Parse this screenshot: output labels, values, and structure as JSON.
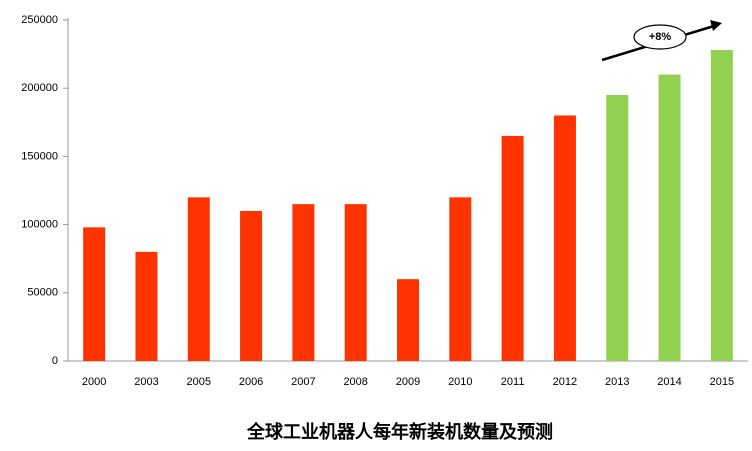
{
  "chart_data": {
    "type": "bar",
    "title": "全球工业机器人每年新装机数量及预测",
    "annotation": "+8%",
    "categories": [
      "2000",
      "2003",
      "2005",
      "2006",
      "2007",
      "2008",
      "2009",
      "2010",
      "2011",
      "2012",
      "2013",
      "2014",
      "2015"
    ],
    "values": [
      98000,
      80000,
      120000,
      110000,
      115000,
      115000,
      60000,
      120000,
      165000,
      180000,
      195000,
      210000,
      228000
    ],
    "colors": [
      "#ff3300",
      "#ff3300",
      "#ff3300",
      "#ff3300",
      "#ff3300",
      "#ff3300",
      "#ff3300",
      "#ff3300",
      "#ff3300",
      "#ff3300",
      "#92d050",
      "#92d050",
      "#92d050"
    ],
    "ylim": [
      0,
      250000
    ],
    "yticks": [
      0,
      50000,
      100000,
      150000,
      200000,
      250000
    ],
    "grid": false
  }
}
